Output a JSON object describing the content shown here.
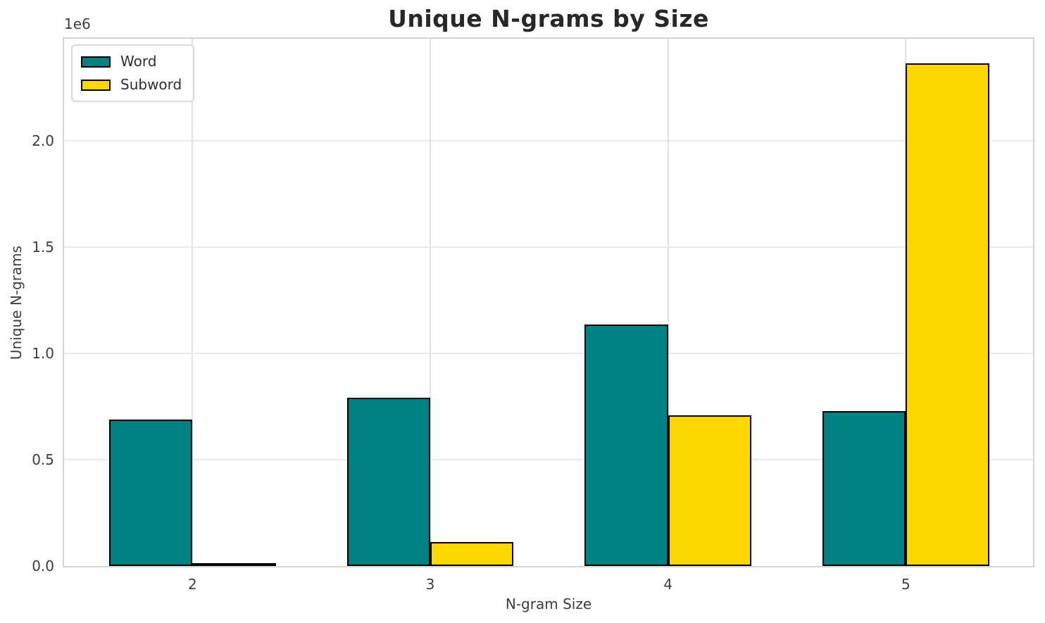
{
  "chart_data": {
    "type": "bar",
    "title": "Unique N-grams by Size",
    "xlabel": "N-gram Size",
    "ylabel": "Unique N-grams",
    "y_offset_text": "1e6",
    "categories": [
      "2",
      "3",
      "4",
      "5"
    ],
    "series": [
      {
        "name": "Word",
        "color": "#008080",
        "values": [
          688000,
          791000,
          1137000,
          728000
        ]
      },
      {
        "name": "Subword",
        "color": "#FFD700",
        "values": [
          14000,
          114000,
          710000,
          2365000
        ]
      }
    ],
    "bar_edge_color": "#000000",
    "bar_width_data_units": 0.35,
    "xlim": [
      1.46,
      5.535
    ],
    "ylim": [
      0,
      2481000
    ],
    "yticks": [
      0,
      500000,
      1000000,
      1500000,
      2000000
    ],
    "ytick_labels": [
      "0.0",
      "0.5",
      "1.0",
      "1.5",
      "2.0"
    ],
    "grid": true,
    "legend_position": "upper-left"
  }
}
